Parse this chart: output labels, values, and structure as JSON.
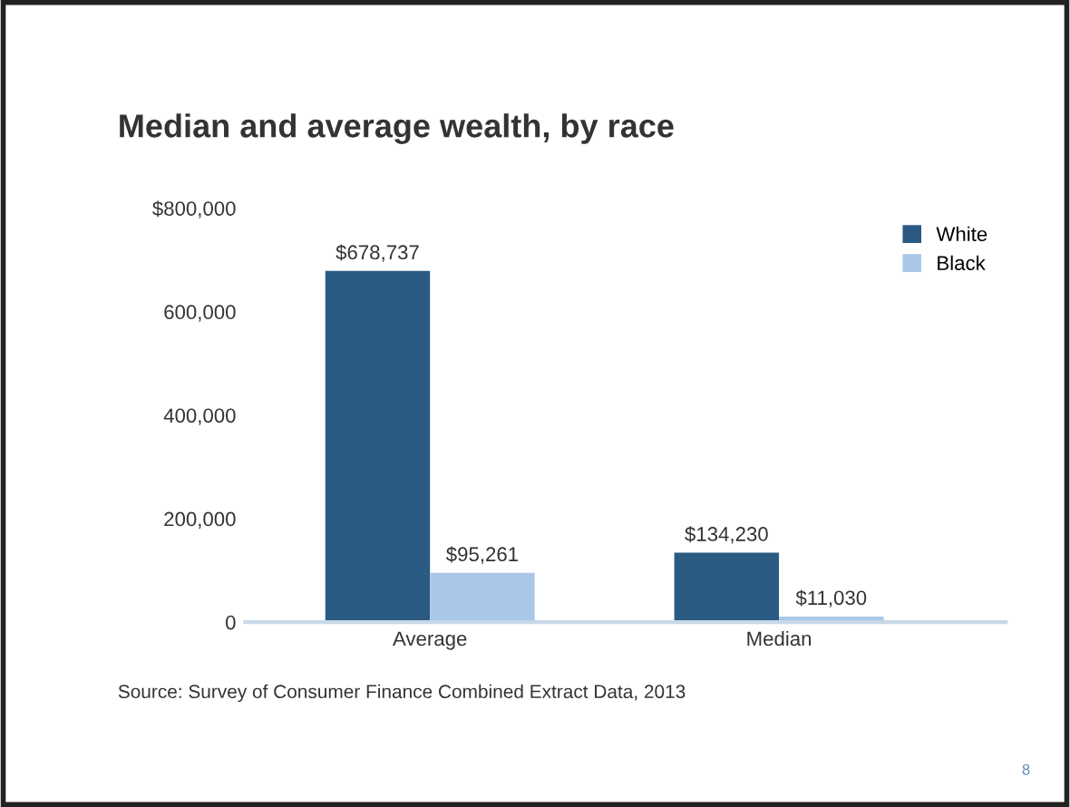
{
  "chart_data": {
    "type": "bar",
    "title": "Median and average wealth, by race",
    "categories": [
      "Average",
      "Median"
    ],
    "series": [
      {
        "name": "White",
        "color": "#2b5b82",
        "values": [
          678737,
          134230
        ],
        "value_labels": [
          "$678,737",
          "$134,230"
        ]
      },
      {
        "name": "Black",
        "color": "#a9c8e8",
        "values": [
          95261,
          11030
        ],
        "value_labels": [
          "$95,261",
          "$11,030"
        ]
      }
    ],
    "ylim": [
      0,
      800000
    ],
    "yticks": [
      {
        "value": 0,
        "label": "0"
      },
      {
        "value": 200000,
        "label": "200,000"
      },
      {
        "value": 400000,
        "label": "400,000"
      },
      {
        "value": 600000,
        "label": "600,000"
      },
      {
        "value": 800000,
        "label": "$800,000"
      }
    ],
    "grid": false,
    "legend": "top right",
    "annotations": [
      "Source: Survey of Consumer Finance Combined Extract Data, 2013",
      "8"
    ]
  }
}
